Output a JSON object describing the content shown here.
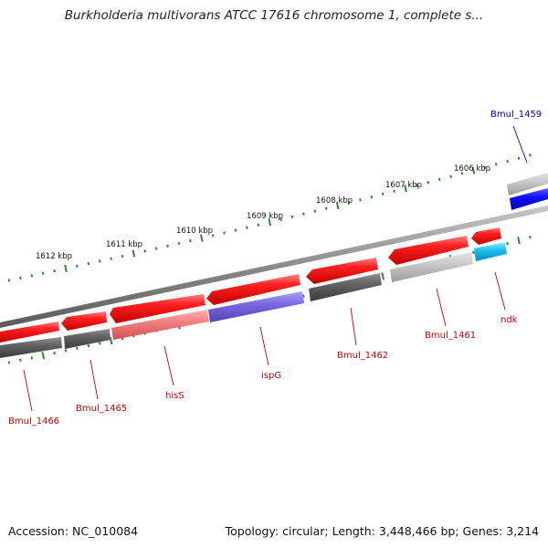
{
  "title": "Burkholderia multivorans ATCC 17616 chromosome 1, complete s...",
  "footer": {
    "accession": "Accession: NC_010084",
    "summary": "Topology: circular; Length: 3,448,466 bp; Genes: 3,214"
  },
  "colors": {
    "forward_cds": "#ff1010",
    "reverse_strand": "#5a5a5a",
    "backbone": "#8a8a8a",
    "tick": "#2e8b2e",
    "label_red": "#cc0000",
    "label_blue": "#0000aa"
  },
  "scale_labels": [
    {
      "kbp": 1612,
      "text": "1612 kbp"
    },
    {
      "kbp": 1611,
      "text": "1611 kbp"
    },
    {
      "kbp": 1610,
      "text": "1610 kbp"
    },
    {
      "kbp": 1609,
      "text": "1609 kbp"
    },
    {
      "kbp": 1608,
      "text": "1608 kbp"
    },
    {
      "kbp": 1607,
      "text": "1607 kbp"
    },
    {
      "kbp": 1606,
      "text": "1606 kbp"
    }
  ],
  "genes": [
    {
      "name": "Bmul_1459",
      "color": "blue"
    },
    {
      "name": "ndk",
      "color": "red"
    },
    {
      "name": "Bmul_1461",
      "color": "red"
    },
    {
      "name": "Bmul_1462",
      "color": "red"
    },
    {
      "name": "ispG",
      "color": "red"
    },
    {
      "name": "hisS",
      "color": "red"
    },
    {
      "name": "Bmul_1465",
      "color": "red"
    },
    {
      "name": "Bmul_1466",
      "color": "red"
    }
  ]
}
